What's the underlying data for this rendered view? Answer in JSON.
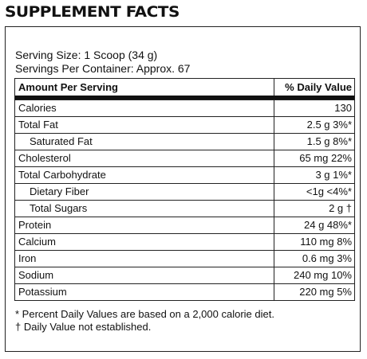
{
  "title": "SUPPLEMENT FACTS",
  "serving_size": "Serving Size: 1 Scoop (34 g)",
  "servings_per_container": "Servings Per Container: Approx. 67",
  "table": {
    "header_left": "Amount Per Serving",
    "header_right": "% Daily Value",
    "rows": [
      {
        "label": "Calories",
        "value": "130",
        "indent": false
      },
      {
        "label": "Total Fat",
        "value": "2.5 g 3%*",
        "indent": false
      },
      {
        "label": "Saturated Fat",
        "value": "1.5 g 8%*",
        "indent": true
      },
      {
        "label": "Cholesterol",
        "value": "65 mg 22%",
        "indent": false
      },
      {
        "label": "Total Carbohydrate",
        "value": "3 g 1%*",
        "indent": false
      },
      {
        "label": "Dietary Fiber",
        "value": "<1g <4%*",
        "indent": true
      },
      {
        "label": "Total Sugars",
        "value": "2 g †",
        "indent": true
      },
      {
        "label": "Protein",
        "value": "24 g 48%*",
        "indent": false
      },
      {
        "label": "Calcium",
        "value": "110 mg 8%",
        "indent": false
      },
      {
        "label": "Iron",
        "value": "0.6 mg 3%",
        "indent": false
      },
      {
        "label": "Sodium",
        "value": "240 mg 10%",
        "indent": false
      },
      {
        "label": "Potassium",
        "value": "220 mg 5%",
        "indent": false
      }
    ]
  },
  "footnotes": {
    "percent_note": "* Percent Daily Values are based on a 2,000 calorie diet.",
    "dagger_note": "† Daily Value not established."
  }
}
